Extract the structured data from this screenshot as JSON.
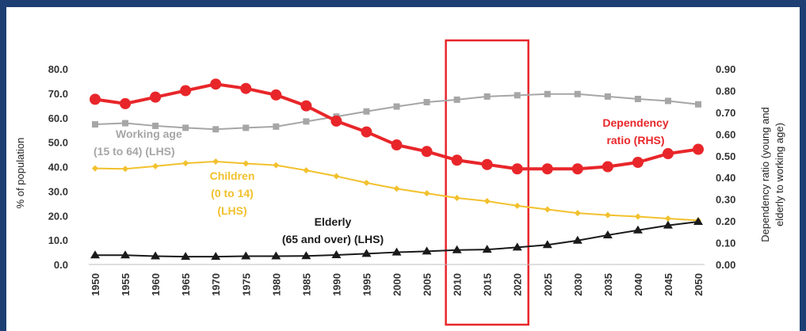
{
  "chart_data": {
    "type": "line",
    "x": [
      1950,
      1955,
      1960,
      1965,
      1970,
      1975,
      1980,
      1985,
      1990,
      1995,
      2000,
      2005,
      2010,
      2015,
      2020,
      2025,
      2030,
      2035,
      2040,
      2045,
      2050
    ],
    "ylabel_left": "% of population",
    "ylabel_right": [
      "Dependency ratio (young and",
      "elderly to working age)"
    ],
    "ylim_left": [
      0,
      80
    ],
    "ylim_right": [
      0,
      0.9
    ],
    "yticks_left": [
      "0.0",
      "10.0",
      "20.0",
      "30.0",
      "40.0",
      "50.0",
      "60.0",
      "70.0",
      "80.0"
    ],
    "yticks_right": [
      "0.00",
      "0.10",
      "0.20",
      "0.30",
      "0.40",
      "0.50",
      "0.60",
      "0.70",
      "0.80",
      "0.90"
    ],
    "grid": false,
    "highlight_range": [
      2010,
      2020
    ],
    "series": [
      {
        "name": "Working age (15 to 64) (LHS)",
        "label_lines": [
          "Working age",
          "(15 to 64) (LHS)"
        ],
        "axis": "left",
        "color": "#a6a6a6",
        "marker": "square",
        "values": [
          57.3,
          57.8,
          56.7,
          55.9,
          55.3,
          55.9,
          56.4,
          58.5,
          60.5,
          62.6,
          64.6,
          66.4,
          67.4,
          68.7,
          69.2,
          69.7,
          69.7,
          68.7,
          67.7,
          66.9,
          65.5
        ]
      },
      {
        "name": "Children (0 to 14) (LHS)",
        "label_lines": [
          "Children",
          "(0 to 14)",
          "(LHS)"
        ],
        "axis": "left",
        "color": "#f2c12e",
        "marker": "diamond",
        "values": [
          39.3,
          39.1,
          40.2,
          41.4,
          42.1,
          41.3,
          40.6,
          38.5,
          36.1,
          33.4,
          31.0,
          29.1,
          27.2,
          25.9,
          24.0,
          22.5,
          21.0,
          20.2,
          19.6,
          18.8,
          18.0
        ]
      },
      {
        "name": "Elderly (65 and over) (LHS)",
        "label_lines": [
          "Elderly",
          "(65 and over) (LHS)"
        ],
        "axis": "left",
        "color": "#1a1a1a",
        "marker": "triangle",
        "values": [
          3.8,
          3.8,
          3.4,
          3.2,
          3.2,
          3.4,
          3.4,
          3.5,
          3.9,
          4.4,
          5.0,
          5.4,
          5.9,
          6.1,
          7.0,
          8.0,
          9.8,
          12.0,
          14.0,
          16.0,
          17.5
        ]
      },
      {
        "name": "Dependency ratio (RHS)",
        "label_lines": [
          "Dependency",
          "ratio (RHS)"
        ],
        "axis": "right",
        "color": "#e8262a",
        "marker": "circle",
        "values": [
          0.76,
          0.74,
          0.77,
          0.8,
          0.83,
          0.81,
          0.78,
          0.73,
          0.66,
          0.61,
          0.55,
          0.52,
          0.48,
          0.46,
          0.44,
          0.44,
          0.44,
          0.45,
          0.47,
          0.51,
          0.53
        ]
      }
    ]
  }
}
